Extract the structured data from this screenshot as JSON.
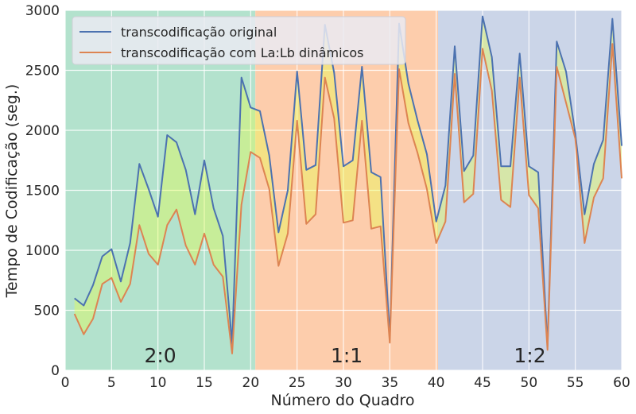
{
  "chart_data": {
    "type": "line",
    "xlabel": "Número do Quadro",
    "ylabel": "Tempo de Codificação (seg.)",
    "xlim": [
      0,
      60
    ],
    "ylim": [
      0,
      3000
    ],
    "xticks": [
      0,
      5,
      10,
      15,
      20,
      25,
      30,
      35,
      40,
      45,
      50,
      55,
      60
    ],
    "yticks": [
      0,
      500,
      1000,
      1500,
      2000,
      2500,
      3000
    ],
    "grid": true,
    "legend_position": "top-left",
    "regions": [
      {
        "label": "2:0",
        "x_start": 0,
        "x_end": 20.5,
        "color": "#b3e2cd"
      },
      {
        "label": "1:1",
        "x_start": 20.5,
        "x_end": 40.2,
        "color": "#fdcdac"
      },
      {
        "label": "1:2",
        "x_start": 40.2,
        "x_end": 60,
        "color": "#cbd5e8"
      }
    ],
    "fill_between_color": "#e5ff4a",
    "x": [
      1,
      2,
      3,
      4,
      5,
      6,
      7,
      8,
      9,
      10,
      11,
      12,
      13,
      14,
      15,
      16,
      17,
      18,
      19,
      20,
      21,
      22,
      23,
      24,
      25,
      26,
      27,
      28,
      29,
      30,
      31,
      32,
      33,
      34,
      35,
      36,
      37,
      38,
      39,
      40,
      41,
      42,
      43,
      44,
      45,
      46,
      47,
      48,
      49,
      50,
      51,
      52,
      53,
      54,
      55,
      56,
      57,
      58,
      59,
      60
    ],
    "series": [
      {
        "name": "transcodificação original",
        "color": "#4c72b0",
        "values": [
          600,
          540,
          710,
          950,
          1010,
          740,
          1060,
          1720,
          1510,
          1280,
          1960,
          1900,
          1670,
          1300,
          1750,
          1350,
          1120,
          220,
          2440,
          2190,
          2160,
          1790,
          1150,
          1500,
          2490,
          1670,
          1710,
          2880,
          2480,
          1700,
          1750,
          2530,
          1650,
          1610,
          270,
          2890,
          2390,
          2080,
          1800,
          1240,
          1540,
          2700,
          1660,
          1790,
          2950,
          2610,
          1700,
          1700,
          2640,
          1700,
          1650,
          200,
          2740,
          2490,
          1970,
          1300,
          1720,
          1920,
          2930,
          1870
        ]
      },
      {
        "name": "transcodificação com La:Lb dinâmicos",
        "color": "#dd8452",
        "values": [
          470,
          300,
          430,
          720,
          770,
          570,
          720,
          1210,
          970,
          880,
          1210,
          1340,
          1040,
          880,
          1140,
          880,
          780,
          140,
          1380,
          1820,
          1770,
          1510,
          870,
          1140,
          2080,
          1220,
          1300,
          2440,
          2100,
          1230,
          1250,
          2080,
          1180,
          1200,
          230,
          2510,
          2060,
          1810,
          1510,
          1060,
          1240,
          2470,
          1400,
          1470,
          2680,
          2330,
          1420,
          1360,
          2440,
          1460,
          1350,
          170,
          2530,
          2230,
          1930,
          1060,
          1440,
          1600,
          2720,
          1600
        ]
      }
    ]
  }
}
